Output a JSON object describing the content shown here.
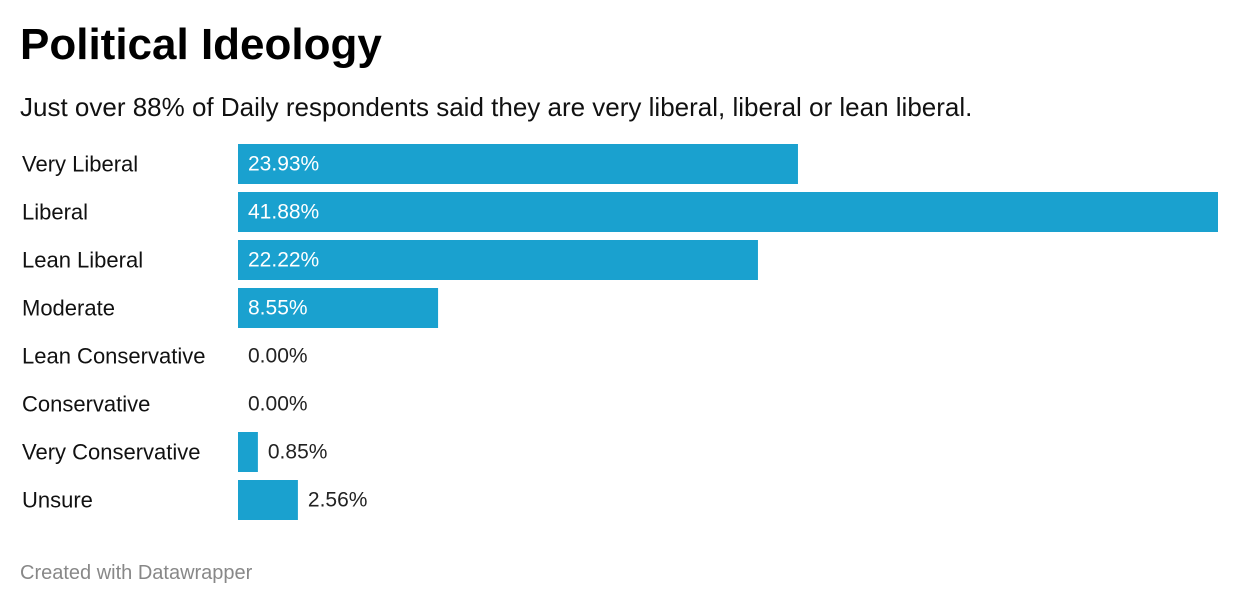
{
  "title": "Political Ideology",
  "subtitle": "Just over 88% of Daily respondents said they are very liberal, liberal or lean liberal.",
  "footer": "Created with Datawrapper",
  "colors": {
    "bar": "#1aa1cf",
    "label_inside": "#ffffff",
    "label_outside": "#222222",
    "category_text": "#111111"
  },
  "chart_data": {
    "type": "bar",
    "orientation": "horizontal",
    "title": "Political Ideology",
    "subtitle": "Just over 88% of Daily respondents said they are very liberal, liberal or lean liberal.",
    "categories": [
      "Very Liberal",
      "Liberal",
      "Lean Liberal",
      "Moderate",
      "Lean Conservative",
      "Conservative",
      "Very Conservative",
      "Unsure"
    ],
    "values": [
      23.93,
      41.88,
      22.22,
      8.55,
      0.0,
      0.0,
      0.85,
      2.56
    ],
    "value_labels": [
      "23.93%",
      "41.88%",
      "22.22%",
      "8.55%",
      "0.00%",
      "0.00%",
      "0.85%",
      "2.56%"
    ],
    "xlim": [
      0,
      41.88
    ],
    "xlabel": "",
    "ylabel": "",
    "grid": false
  }
}
